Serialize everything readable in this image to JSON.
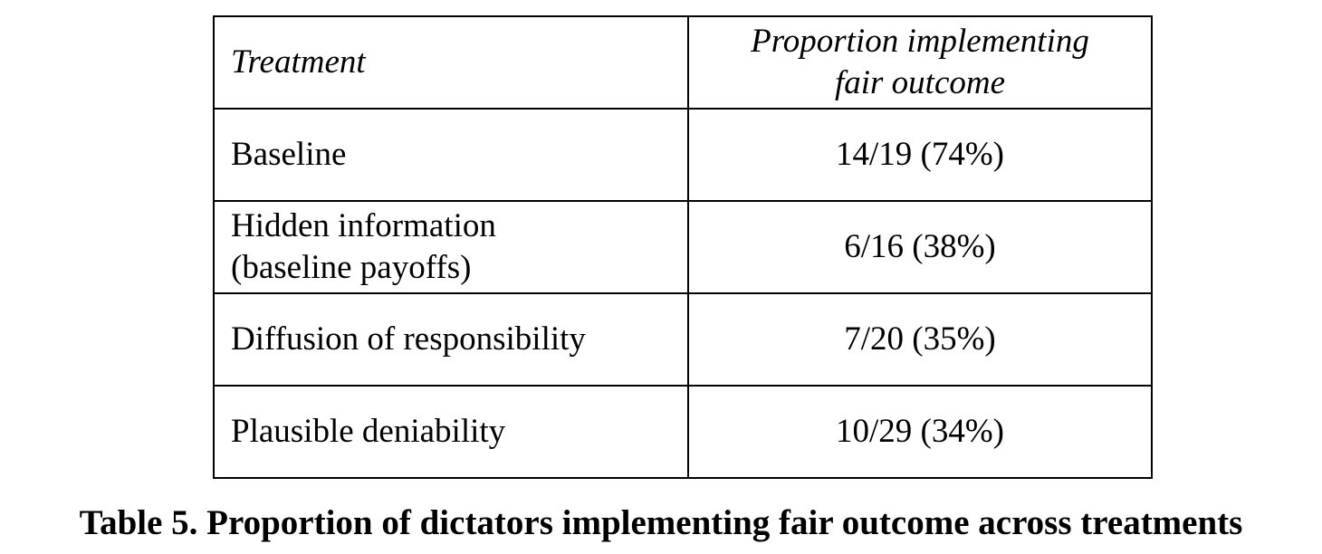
{
  "table": {
    "headers": {
      "treatment": "Treatment",
      "proportion_line1": "Proportion implementing",
      "proportion_line2": "fair outcome"
    },
    "rows": [
      {
        "treatment_line1": "Baseline",
        "treatment_line2": "",
        "value": "14/19 (74%)"
      },
      {
        "treatment_line1": "Hidden information",
        "treatment_line2": "(baseline payoffs)",
        "value": "6/16 (38%)"
      },
      {
        "treatment_line1": "Diffusion of responsibility",
        "treatment_line2": "",
        "value": "7/20 (35%)"
      },
      {
        "treatment_line1": "Plausible deniability",
        "treatment_line2": "",
        "value": "10/29 (34%)"
      }
    ]
  },
  "caption": "Table 5. Proportion of dictators implementing fair outcome across treatments"
}
